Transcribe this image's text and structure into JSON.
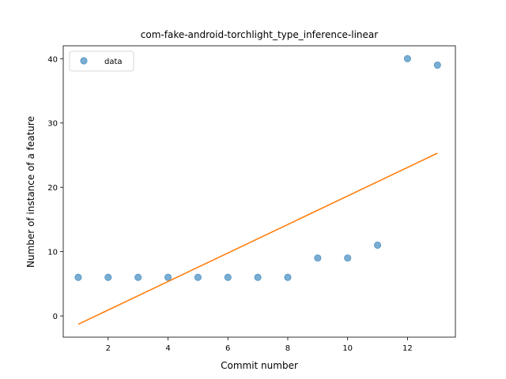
{
  "chart_data": {
    "type": "scatter",
    "title": "com-fake-android-torchlight_type_inference-linear",
    "xlabel": "Commit number",
    "ylabel": "Number of instance of a feature",
    "xlim": [
      0.5,
      13.6
    ],
    "ylim": [
      -3.3,
      42
    ],
    "xticks": [
      2,
      4,
      6,
      8,
      10,
      12
    ],
    "yticks": [
      0,
      10,
      20,
      30,
      40
    ],
    "grid": false,
    "legend": {
      "placement": "top-left",
      "entries": [
        "data"
      ]
    },
    "series": [
      {
        "name": "data",
        "kind": "scatter",
        "color": "#1f77b4",
        "x": [
          1,
          2,
          3,
          4,
          5,
          6,
          7,
          8,
          9,
          10,
          11,
          12,
          13
        ],
        "y": [
          6,
          6,
          6,
          6,
          6,
          6,
          6,
          6,
          9,
          9,
          11,
          40,
          39
        ]
      },
      {
        "kind": "line",
        "color": "#ff7f0e",
        "x": [
          1,
          13
        ],
        "y": [
          -1.3,
          25.3
        ]
      }
    ]
  }
}
